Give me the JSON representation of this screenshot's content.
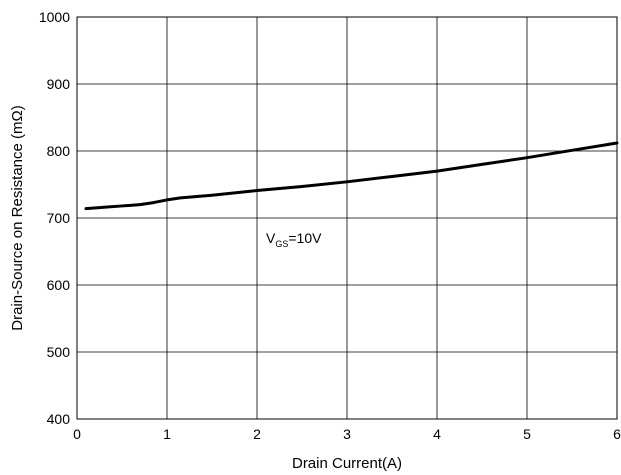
{
  "chart_data": {
    "type": "line",
    "title": "",
    "xlabel": "Drain Current(A)",
    "ylabel": "Drain-Source on Resistance (mΩ)",
    "xlim": [
      0,
      6
    ],
    "ylim": [
      400,
      1000
    ],
    "xticks": [
      "0",
      "1",
      "2",
      "3",
      "4",
      "5",
      "6"
    ],
    "yticks": [
      "400",
      "500",
      "600",
      "700",
      "800",
      "900",
      "1000"
    ],
    "grid": true,
    "legend": "none",
    "annotation": {
      "main": "V",
      "subscript": "GS",
      "suffix": "=10V",
      "x": 2.1,
      "y": 700
    },
    "series": [
      {
        "color": "#000000",
        "x": [
          0.1,
          0.3,
          0.5,
          0.7,
          0.85,
          1.0,
          1.15,
          1.5,
          2.0,
          2.5,
          3.0,
          3.5,
          4.0,
          4.5,
          5.0,
          5.5,
          6.0
        ],
        "y": [
          714,
          716,
          718,
          720,
          723,
          727,
          730,
          734,
          741,
          747,
          754,
          762,
          770,
          780,
          790,
          801,
          812
        ]
      }
    ]
  }
}
